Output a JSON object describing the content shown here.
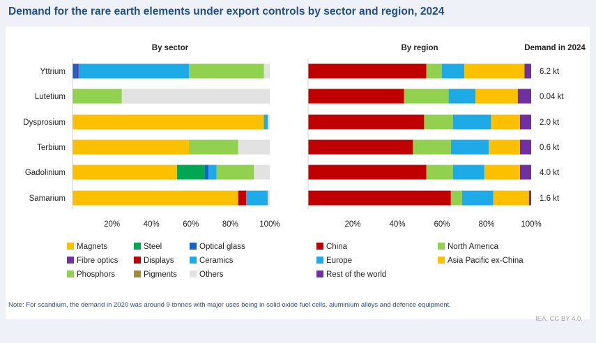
{
  "title": "Demand for the rare earth elements under export controls by sector and region, 2024",
  "credit": "IEA. CC BY 4.0.",
  "note": "Note: For scandium, the demand in 2020 was around 9 tonnes with major uses being in solid oxide fuel cells, aluminium alloys and defence equipment.",
  "chart_data": [
    {
      "type": "bar",
      "orientation": "horizontal",
      "stacked": true,
      "title": "By sector",
      "categories": [
        "Yttrium",
        "Lutetium",
        "Dysprosium",
        "Terbium",
        "Gadolinium",
        "Samarium"
      ],
      "xlim": [
        0,
        100
      ],
      "xticks": [
        "20%",
        "40%",
        "60%",
        "80%",
        "100%"
      ],
      "series": [
        {
          "name": "Magnets",
          "color": "#fcc000",
          "values": [
            0,
            0,
            97,
            59,
            53,
            84
          ]
        },
        {
          "name": "Steel",
          "color": "#00a651",
          "values": [
            0,
            0,
            0,
            0,
            14,
            0
          ]
        },
        {
          "name": "Optical glass",
          "color": "#1565c0",
          "values": [
            2,
            0,
            0,
            0,
            2,
            0
          ]
        },
        {
          "name": "Fibre optics",
          "color": "#7030a0",
          "values": [
            1,
            0,
            0,
            0,
            0,
            0
          ]
        },
        {
          "name": "Displays",
          "color": "#c00000",
          "values": [
            0,
            0,
            0,
            0,
            0,
            4
          ]
        },
        {
          "name": "Ceramics",
          "color": "#1eaae7",
          "values": [
            56,
            0,
            2,
            0,
            4,
            11
          ]
        },
        {
          "name": "Phosphors",
          "color": "#92d050",
          "values": [
            38,
            25,
            0,
            25,
            19,
            0
          ]
        },
        {
          "name": "Pigments",
          "color": "#a08b3c",
          "values": [
            0,
            0,
            0,
            0,
            0,
            0
          ]
        },
        {
          "name": "Others",
          "color": "#e2e2e2",
          "values": [
            3,
            75,
            1,
            16,
            8,
            1
          ]
        }
      ]
    },
    {
      "type": "bar",
      "orientation": "horizontal",
      "stacked": true,
      "title": "By region",
      "categories": [
        "Yttrium",
        "Lutetium",
        "Dysprosium",
        "Terbium",
        "Gadolinium",
        "Samarium"
      ],
      "xlim": [
        0,
        100
      ],
      "xticks": [
        "20%",
        "40%",
        "60%",
        "80%",
        "100%"
      ],
      "series": [
        {
          "name": "China",
          "color": "#c00000",
          "values": [
            53,
            43,
            52,
            47,
            53,
            64
          ]
        },
        {
          "name": "North America",
          "color": "#92d050",
          "values": [
            7,
            20,
            13,
            17,
            12,
            5
          ]
        },
        {
          "name": "Europe",
          "color": "#1eaae7",
          "values": [
            10,
            12,
            17,
            17,
            14,
            14
          ]
        },
        {
          "name": "Asia Pacific ex-China",
          "color": "#fcc000",
          "values": [
            27,
            19,
            13,
            14,
            16,
            16
          ]
        },
        {
          "name": "Rest of the world",
          "color": "#7030a0",
          "values": [
            3,
            6,
            5,
            5,
            5,
            1
          ]
        }
      ]
    }
  ],
  "demand": {
    "header": "Demand in 2024",
    "values": [
      "6.2 kt",
      "0.04 kt",
      "2.0 kt",
      "0.6 kt",
      "4.0 kt",
      "1.6 kt"
    ]
  }
}
